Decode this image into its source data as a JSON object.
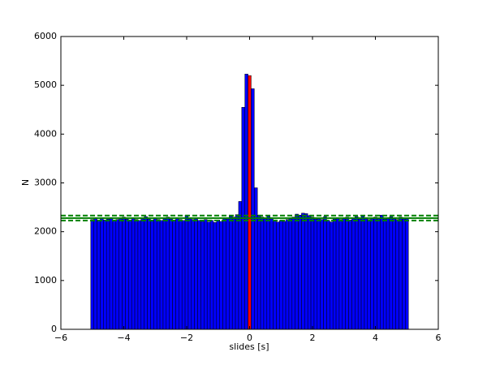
{
  "chart_data": {
    "type": "histogram",
    "xlabel": "slides [s]",
    "ylabel": "N",
    "bins": [
      -5.05,
      -4.95,
      -4.85,
      -4.75,
      -4.65,
      -4.55,
      -4.45,
      -4.35,
      -4.25,
      -4.15,
      -4.05,
      -3.95,
      -3.85,
      -3.75,
      -3.65,
      -3.55,
      -3.45,
      -3.35,
      -3.25,
      -3.15,
      -3.05,
      -2.95,
      -2.85,
      -2.75,
      -2.65,
      -2.55,
      -2.45,
      -2.35,
      -2.25,
      -2.15,
      -2.05,
      -1.95,
      -1.85,
      -1.75,
      -1.65,
      -1.55,
      -1.45,
      -1.35,
      -1.25,
      -1.15,
      -1.05,
      -0.95,
      -0.85,
      -0.75,
      -0.65,
      -0.55,
      -0.45,
      -0.35,
      -0.25,
      -0.15,
      -0.05,
      0.05,
      0.15,
      0.25,
      0.35,
      0.45,
      0.55,
      0.65,
      0.75,
      0.85,
      0.95,
      1.05,
      1.15,
      1.25,
      1.35,
      1.45,
      1.55,
      1.65,
      1.75,
      1.85,
      1.95,
      2.05,
      2.15,
      2.25,
      2.35,
      2.45,
      2.55,
      2.65,
      2.75,
      2.85,
      2.95,
      3.05,
      3.15,
      3.25,
      3.35,
      3.45,
      3.55,
      3.65,
      3.75,
      3.85,
      3.95,
      4.05,
      4.15,
      4.25,
      4.35,
      4.45,
      4.55,
      4.65,
      4.75,
      4.85,
      4.95,
      5.05
    ],
    "values": [
      2250,
      2280,
      2230,
      2270,
      2240,
      2260,
      2290,
      2230,
      2250,
      2270,
      2300,
      2260,
      2240,
      2280,
      2250,
      2230,
      2270,
      2310,
      2260,
      2240,
      2280,
      2250,
      2230,
      2270,
      2300,
      2260,
      2240,
      2290,
      2250,
      2230,
      2340,
      2280,
      2250,
      2270,
      2230,
      2210,
      2250,
      2200,
      2230,
      2190,
      2240,
      2210,
      2270,
      2260,
      2320,
      2300,
      2350,
      2620,
      4550,
      5230,
      5200,
      4930,
      2900,
      2340,
      2300,
      2280,
      2320,
      2260,
      2240,
      2200,
      2230,
      2210,
      2250,
      2270,
      2300,
      2360,
      2340,
      2380,
      2370,
      2330,
      2300,
      2260,
      2280,
      2250,
      2310,
      2230,
      2200,
      2260,
      2290,
      2250,
      2270,
      2300,
      2240,
      2280,
      2310,
      2260,
      2320,
      2290,
      2250,
      2270,
      2300,
      2280,
      2340,
      2260,
      2290,
      2310,
      2270,
      2250,
      2300,
      2260,
      2280
    ],
    "color": "#0000ff",
    "highlight": {
      "index": 50,
      "color": "#ff0000"
    },
    "hlines": {
      "color": "#008000",
      "lines": [
        {
          "value": 2280,
          "style": "solid"
        },
        {
          "value": 2230,
          "style": "dashed"
        },
        {
          "value": 2330,
          "style": "dashed"
        }
      ]
    },
    "xlim": [
      -6,
      6
    ],
    "xticks": [
      {
        "value": -6,
        "label": "−6"
      },
      {
        "value": -4,
        "label": "−4"
      },
      {
        "value": -2,
        "label": "−2"
      },
      0,
      2,
      4,
      6
    ],
    "ylim": [
      0,
      6000
    ],
    "yticks": [
      0,
      1000,
      2000,
      3000,
      4000,
      5000,
      6000
    ]
  }
}
